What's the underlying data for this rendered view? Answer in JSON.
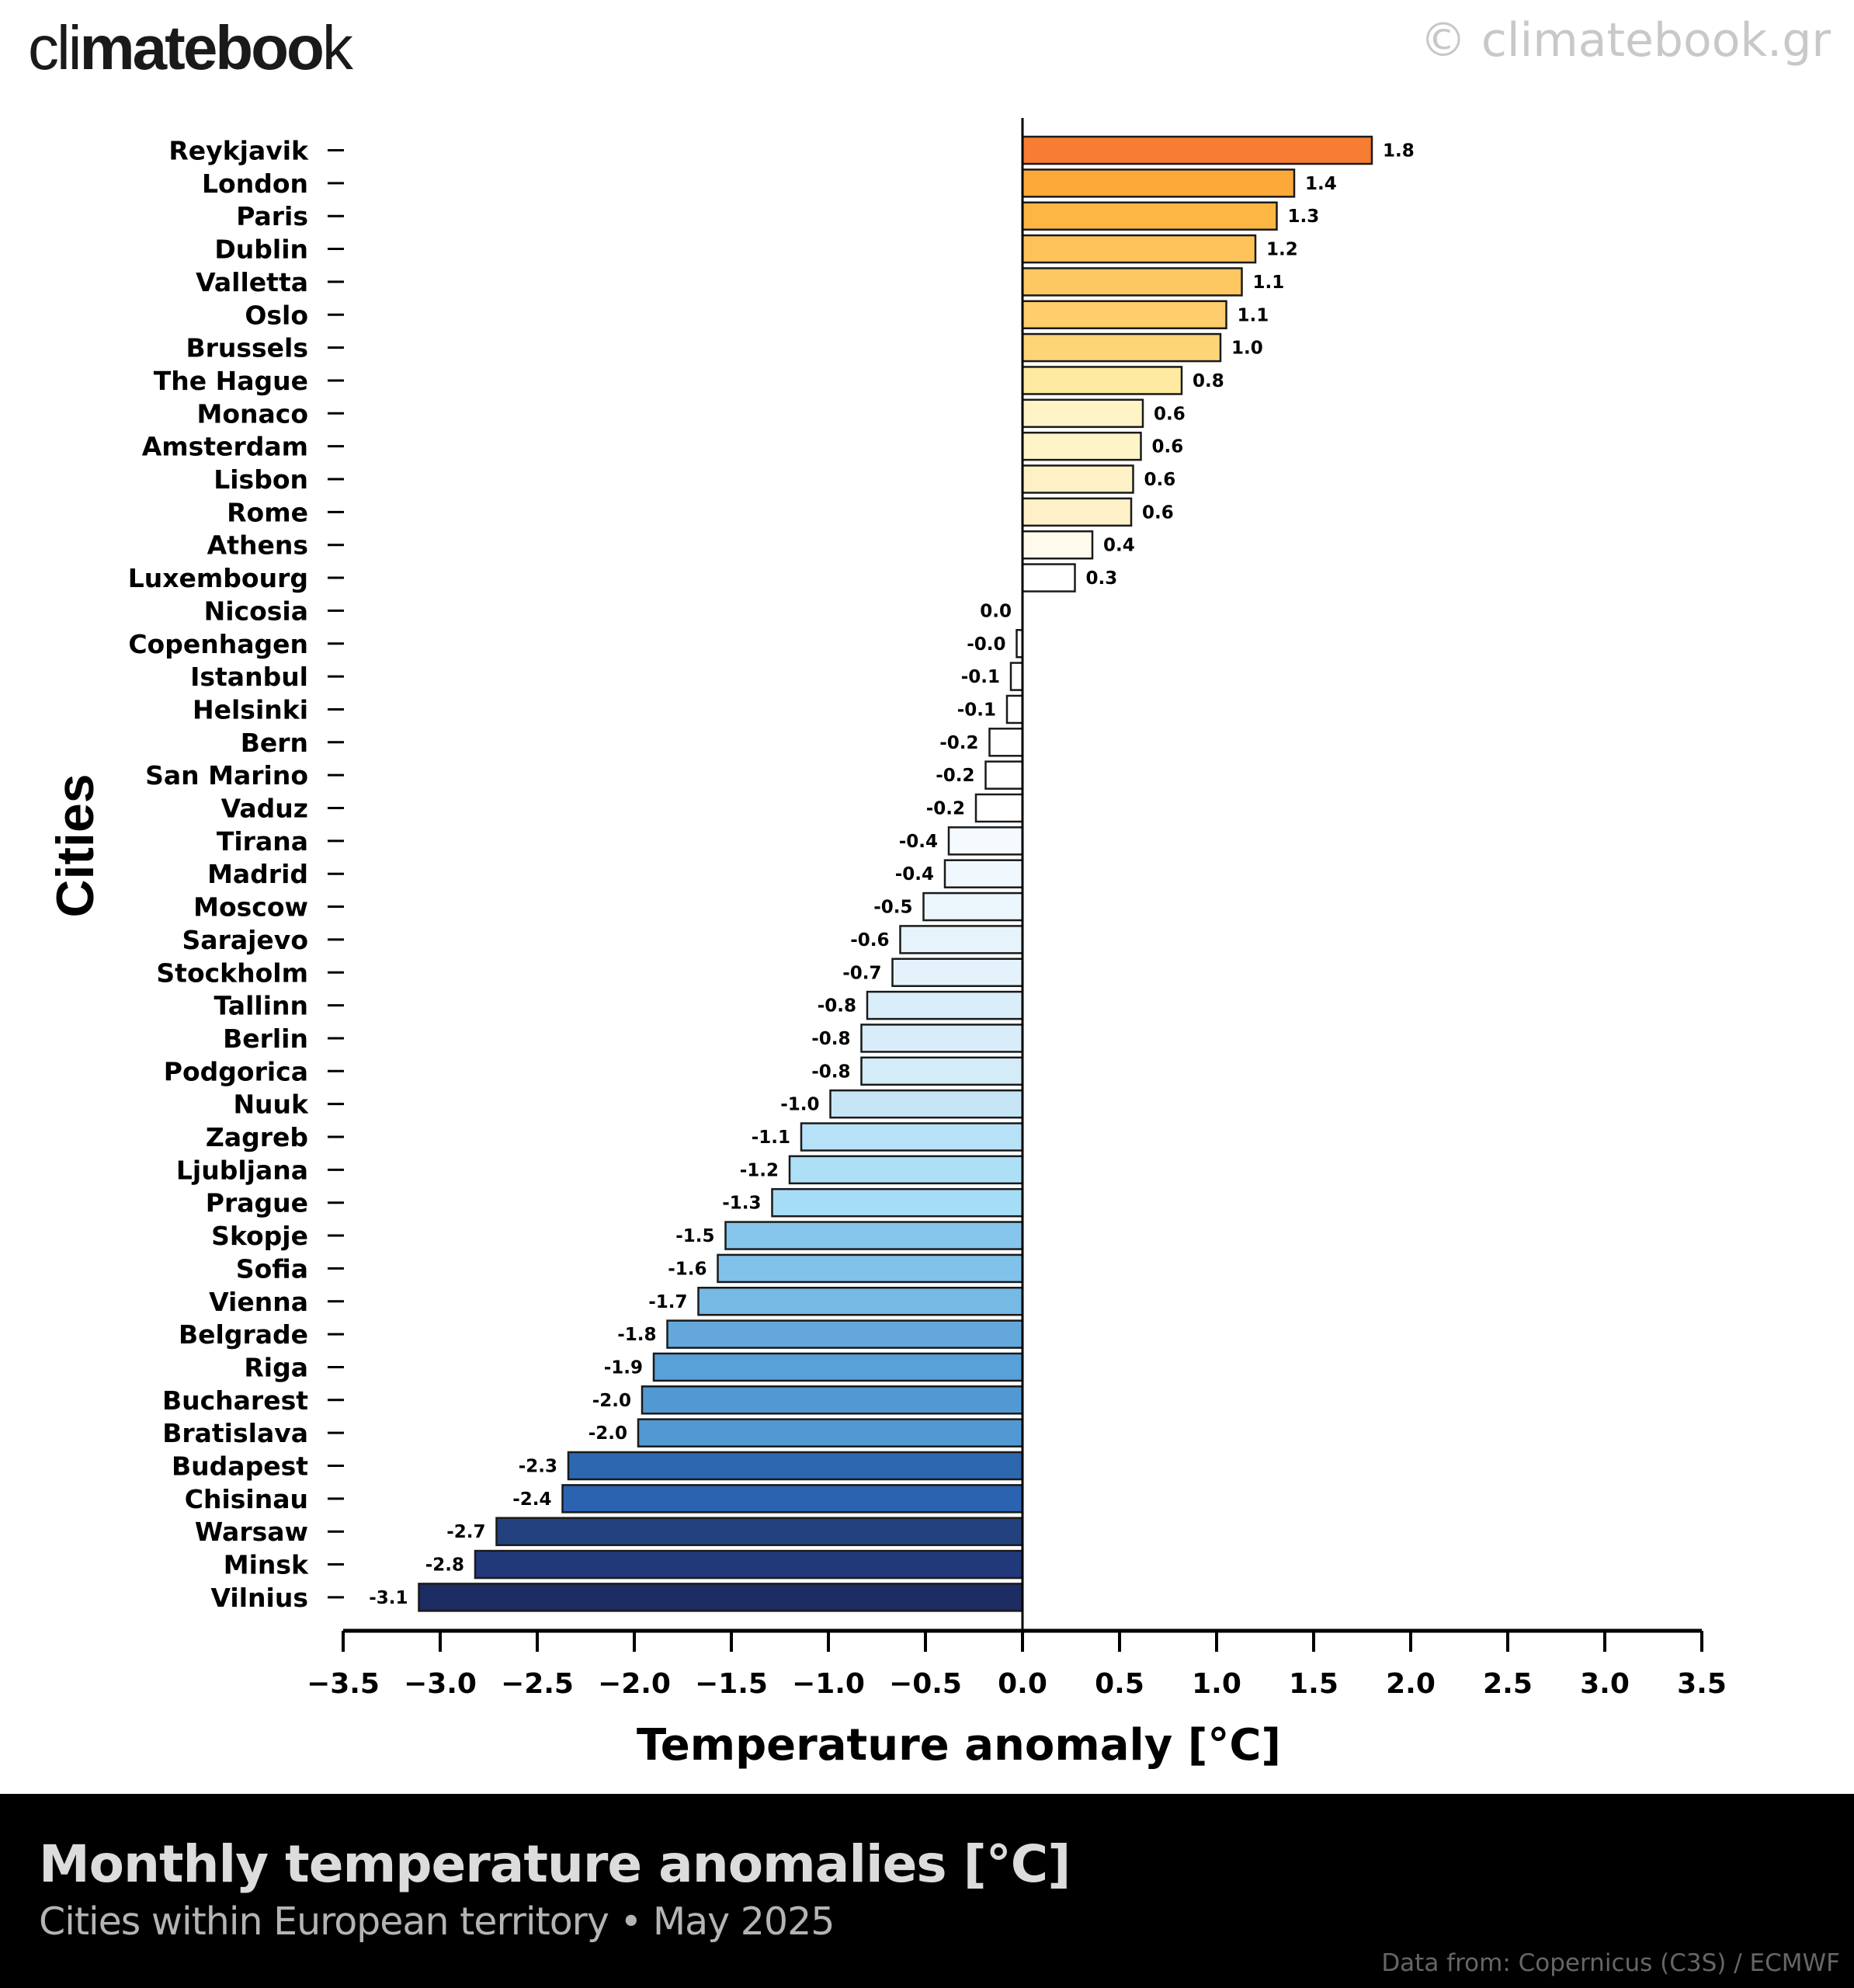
{
  "header": {
    "logo_light_left": "cli",
    "logo_bold": "mateb",
    "logo_bold2": "oo",
    "logo_light_right": "k",
    "watermark": "© climatebook.gr"
  },
  "footer": {
    "title": "Monthly temperature anomalies [°C]",
    "subtitle": "Cities within European territory • May 2025",
    "credit": "Data from: Copernicus (C3S) / ECMWF"
  },
  "chart_data": {
    "type": "bar",
    "orientation": "horizontal",
    "title": "Monthly temperature anomalies [°C]",
    "subtitle": "Cities within European territory • May 2025",
    "xlabel": "Temperature anomaly [°C]",
    "ylabel": "Cities",
    "xlim": [
      -3.5,
      3.5
    ],
    "xticks": [
      -3.5,
      -3.0,
      -2.5,
      -2.0,
      -1.5,
      -1.0,
      -0.5,
      0.0,
      0.5,
      1.0,
      1.5,
      2.0,
      2.5,
      3.0,
      3.5
    ],
    "xtick_labels": [
      "−3.5",
      "−3.0",
      "−2.5",
      "−2.0",
      "−1.5",
      "−1.0",
      "−0.5",
      "0.0",
      "0.5",
      "1.0",
      "1.5",
      "2.0",
      "2.5",
      "3.0",
      "3.5"
    ],
    "grid": false,
    "legend": "none",
    "categories": [
      "Reykjavik",
      "London",
      "Paris",
      "Dublin",
      "Valletta",
      "Oslo",
      "Brussels",
      "The Hague",
      "Monaco",
      "Amsterdam",
      "Lisbon",
      "Rome",
      "Athens",
      "Luxembourg",
      "Nicosia",
      "Copenhagen",
      "Istanbul",
      "Helsinki",
      "Bern",
      "San Marino",
      "Vaduz",
      "Tirana",
      "Madrid",
      "Moscow",
      "Sarajevo",
      "Stockholm",
      "Tallinn",
      "Berlin",
      "Podgorica",
      "Nuuk",
      "Zagreb",
      "Ljubljana",
      "Prague",
      "Skopje",
      "Sofia",
      "Vienna",
      "Belgrade",
      "Riga",
      "Bucharest",
      "Bratislava",
      "Budapest",
      "Chisinau",
      "Warsaw",
      "Minsk",
      "Vilnius"
    ],
    "values": [
      1.8,
      1.4,
      1.31,
      1.2,
      1.13,
      1.05,
      1.02,
      0.82,
      0.62,
      0.61,
      0.57,
      0.56,
      0.36,
      0.27,
      0.0,
      -0.03,
      -0.06,
      -0.08,
      -0.17,
      -0.19,
      -0.24,
      -0.38,
      -0.4,
      -0.51,
      -0.63,
      -0.67,
      -0.8,
      -0.83,
      -0.83,
      -0.99,
      -1.14,
      -1.2,
      -1.29,
      -1.53,
      -1.57,
      -1.67,
      -1.83,
      -1.9,
      -1.96,
      -1.98,
      -2.34,
      -2.37,
      -2.71,
      -2.82,
      -3.11
    ],
    "value_labels": [
      "1.8",
      "1.4",
      "1.3",
      "1.2",
      "1.1",
      "1.1",
      "1.0",
      "0.8",
      "0.6",
      "0.6",
      "0.6",
      "0.6",
      "0.4",
      "0.3",
      "0.0",
      "-0.0",
      "-0.1",
      "-0.1",
      "-0.2",
      "-0.2",
      "-0.2",
      "-0.4",
      "-0.4",
      "-0.5",
      "-0.6",
      "-0.7",
      "-0.8",
      "-0.8",
      "-0.8",
      "-1.0",
      "-1.1",
      "-1.2",
      "-1.3",
      "-1.5",
      "-1.6",
      "-1.7",
      "-1.8",
      "-1.9",
      "-2.0",
      "-2.0",
      "-2.3",
      "-2.4",
      "-2.7",
      "-2.8",
      "-3.1"
    ],
    "colors": [
      "#f67d31",
      "#fca939",
      "#fdb544",
      "#fdc25a",
      "#fdc762",
      "#fecd6c",
      "#fed478",
      "#feeba1",
      "#fff4c8",
      "#fff4c8",
      "#fff1c6",
      "#fff1c7",
      "#fffbec",
      "#ffffff",
      "#ffffff",
      "#ffffff",
      "#ffffff",
      "#ffffff",
      "#ffffff",
      "#ffffff",
      "#ffffff",
      "#f5fafe",
      "#f1f8fd",
      "#ecf6fd",
      "#e6f3fb",
      "#e3f2fb",
      "#daeef9",
      "#d8edf9",
      "#d4ebf8",
      "#c6e6f6",
      "#b7e1f6",
      "#ade0f6",
      "#a6ddf6",
      "#86c5ec",
      "#80c2e9",
      "#75b9e4",
      "#64a8db",
      "#58a0d8",
      "#5299d3",
      "#5299d3",
      "#2d67b0",
      "#2b63b0",
      "#23417f",
      "#21397a",
      "#1d2c62"
    ]
  }
}
